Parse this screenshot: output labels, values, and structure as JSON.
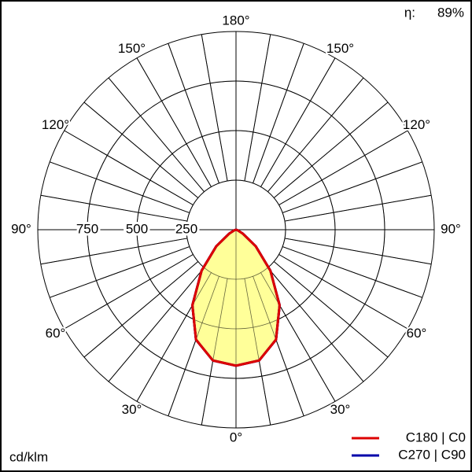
{
  "chart_data": {
    "type": "polar",
    "efficiency_label": "η:",
    "efficiency": "89%",
    "unit_label": "cd/klm",
    "theta": [
      -90,
      -80,
      -70,
      -60,
      -50,
      -40,
      -30,
      -20,
      -10,
      0,
      10,
      20,
      30,
      40,
      50,
      60,
      70,
      80,
      90
    ],
    "series": [
      {
        "name": "C270 | C90",
        "color": "#0000aa",
        "values": [
          0,
          0,
          10,
          40,
          130,
          270,
          440,
          590,
          670,
          686,
          670,
          590,
          440,
          270,
          130,
          40,
          10,
          0,
          0
        ]
      },
      {
        "name": "C180 | C0",
        "color": "#dd0000",
        "fill": "#ffff99",
        "values": [
          0,
          0,
          10,
          40,
          130,
          270,
          440,
          590,
          670,
          686,
          670,
          590,
          440,
          270,
          130,
          40,
          10,
          0,
          0
        ]
      }
    ],
    "rlim": [
      0,
      1000
    ],
    "rticks": [
      250,
      500,
      750
    ],
    "thetaticks": [
      {
        "value": 0,
        "label": "0°"
      },
      {
        "value": 30,
        "label": "30°"
      },
      {
        "value": 60,
        "label": "60°"
      },
      {
        "value": 90,
        "label": "90°"
      },
      {
        "value": 120,
        "label": "120°"
      },
      {
        "value": 150,
        "label": "150°"
      },
      {
        "value": 180,
        "label": "180°"
      }
    ]
  }
}
